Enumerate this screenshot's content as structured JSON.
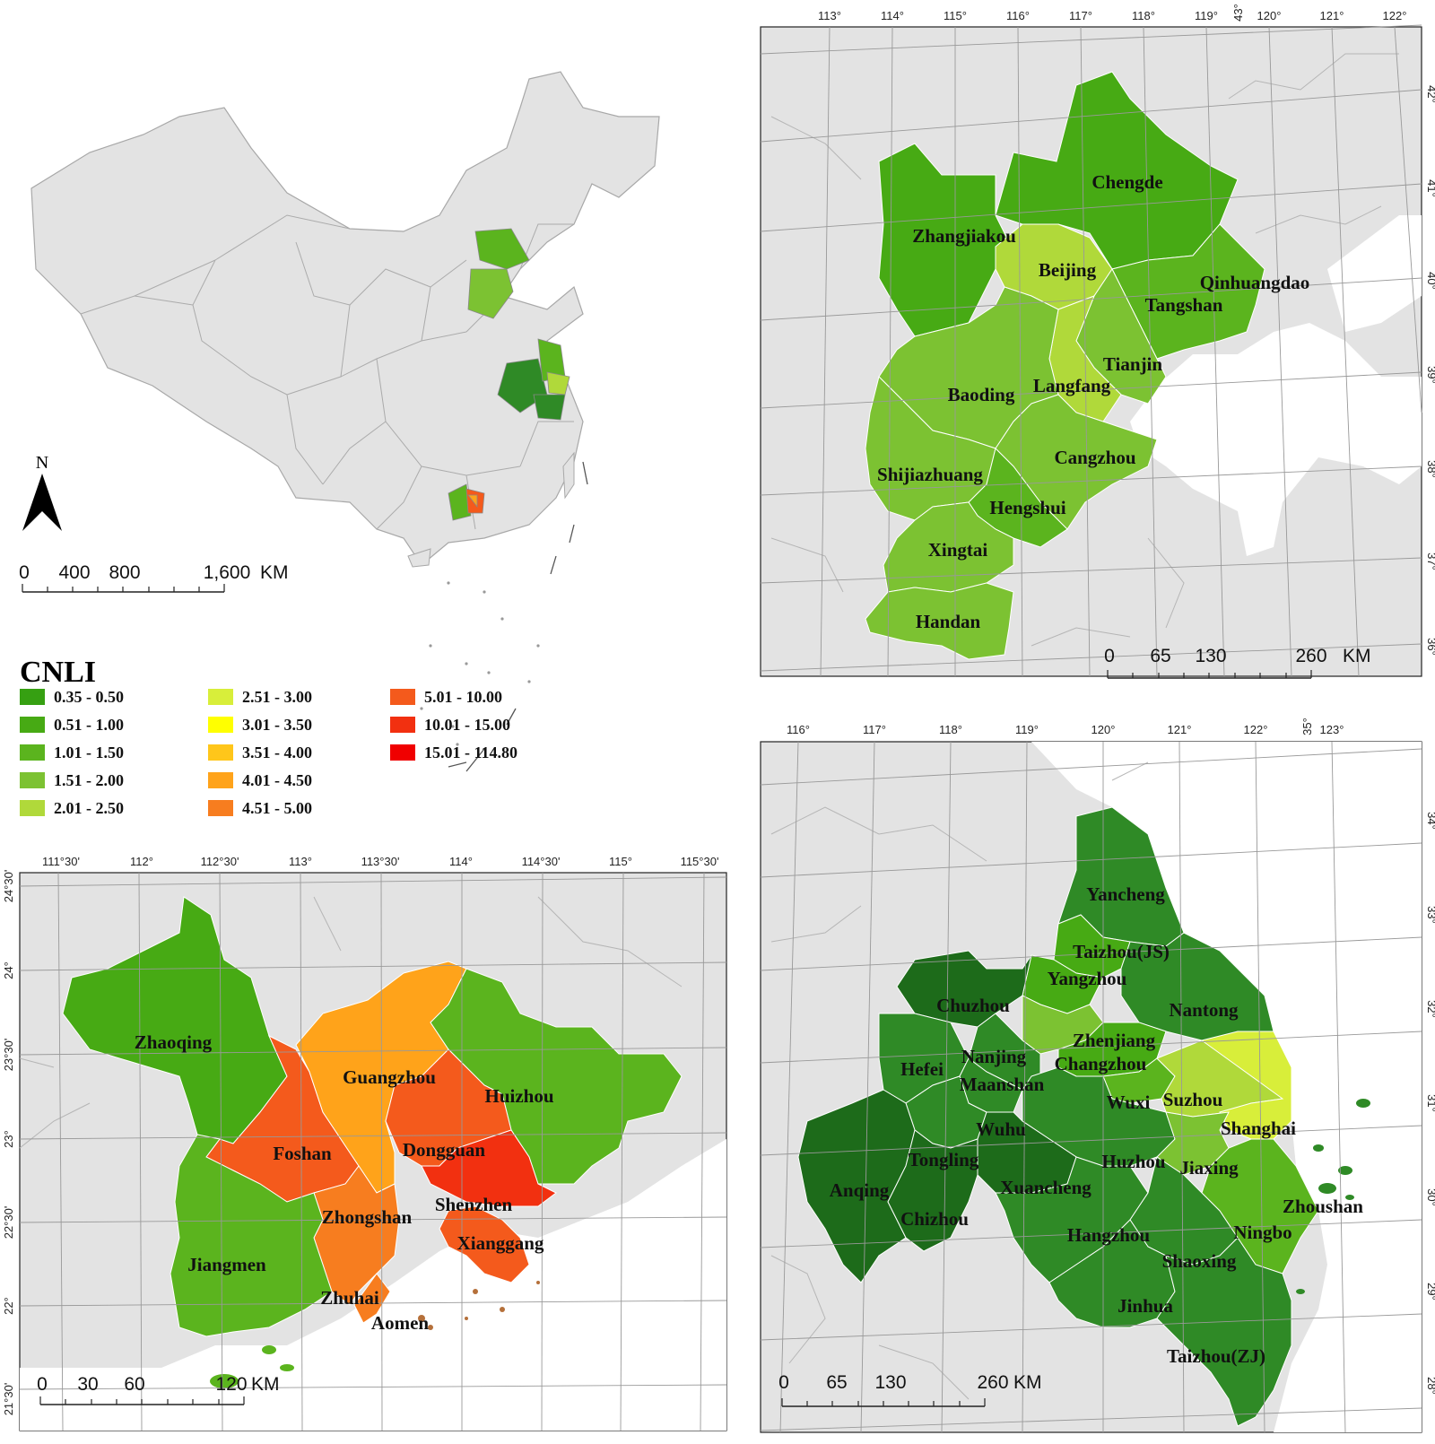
{
  "overview": {
    "north_label": "N",
    "scalebar": {
      "ticks": [
        "0",
        "400",
        "800",
        "1,600"
      ],
      "unit": "KM"
    }
  },
  "legend": {
    "title": "CNLI",
    "classes": [
      {
        "label": "0.35 - 0.50",
        "color": "#36a012"
      },
      {
        "label": "0.51 - 1.00",
        "color": "#47aa14"
      },
      {
        "label": "1.01 - 1.50",
        "color": "#5bb41e"
      },
      {
        "label": "1.51 - 2.00",
        "color": "#7cc232"
      },
      {
        "label": "2.01 - 2.50",
        "color": "#b0d93a"
      },
      {
        "label": "2.51 - 3.00",
        "color": "#d8ee3a"
      },
      {
        "label": "3.01 - 3.50",
        "color": "#ffff00"
      },
      {
        "label": "3.51 - 4.00",
        "color": "#ffc61a"
      },
      {
        "label": "4.01 - 4.50",
        "color": "#ffa31a"
      },
      {
        "label": "4.51 - 5.00",
        "color": "#f77d1f"
      },
      {
        "label": "5.01 - 10.00",
        "color": "#f45a1c"
      },
      {
        "label": "10.01 - 15.00",
        "color": "#f23010"
      },
      {
        "label": "15.01 - 114.80",
        "color": "#f00000"
      }
    ]
  },
  "jjj_map": {
    "top_ticks": [
      "113°",
      "114°",
      "115°",
      "116°",
      "117°",
      "118°",
      "119°",
      "120°",
      "121°",
      "122°"
    ],
    "corner_tick": "43°",
    "right_ticks": [
      "42°",
      "41°",
      "40°",
      "39°",
      "38°",
      "37°",
      "36°"
    ],
    "scalebar": {
      "ticks": [
        "0",
        "65",
        "130",
        "260"
      ],
      "unit": "KM"
    },
    "cities": [
      "Chengde",
      "Zhangjiakou",
      "Beijing",
      "Qinhuangdao",
      "Tangshan",
      "Tianjin",
      "Langfang",
      "Baoding",
      "Cangzhou",
      "Shijiazhuang",
      "Hengshui",
      "Xingtai",
      "Handan"
    ]
  },
  "prd_map": {
    "top_ticks": [
      "111°30'",
      "112°",
      "112°30'",
      "113°",
      "113°30'",
      "114°",
      "114°30'",
      "115°",
      "115°30'"
    ],
    "left_ticks": [
      "24°30'",
      "24°",
      "23°30'",
      "23°",
      "22°30'",
      "22°",
      "21°30'"
    ],
    "scalebar": {
      "ticks": [
        "0",
        "30",
        "60",
        "120"
      ],
      "unit": "KM"
    },
    "cities": [
      "Zhaoqing",
      "Guangzhou",
      "Huizhou",
      "Foshan",
      "Dongguan",
      "Shenzhen",
      "Zhongshan",
      "Xianggang",
      "Jiangmen",
      "Zhuhai",
      "Aomen"
    ]
  },
  "yrd_map": {
    "top_ticks": [
      "116°",
      "117°",
      "118°",
      "119°",
      "120°",
      "121°",
      "122°",
      "123°"
    ],
    "corner_tick": "35°",
    "right_ticks": [
      "34°",
      "33°",
      "32°",
      "31°",
      "30°",
      "29°",
      "28°"
    ],
    "scalebar": {
      "ticks": [
        "0",
        "65",
        "130",
        "260"
      ],
      "unit": "KM"
    },
    "cities": [
      "Yancheng",
      "Taizhou(JS)",
      "Yangzhou",
      "Chuzhou",
      "Nantong",
      "Zhenjiang",
      "Nanjing",
      "Hefei",
      "Changzhou",
      "Maanshan",
      "Wuxi",
      "Suzhou",
      "Shanghai",
      "Wuhu",
      "Tongling",
      "Huzhou",
      "Jiaxing",
      "Xuancheng",
      "Anqing",
      "Zhoushan",
      "Chizhou",
      "Ningbo",
      "Hangzhou",
      "Shaoxing",
      "Jinhua",
      "Taizhou(ZJ)"
    ]
  }
}
